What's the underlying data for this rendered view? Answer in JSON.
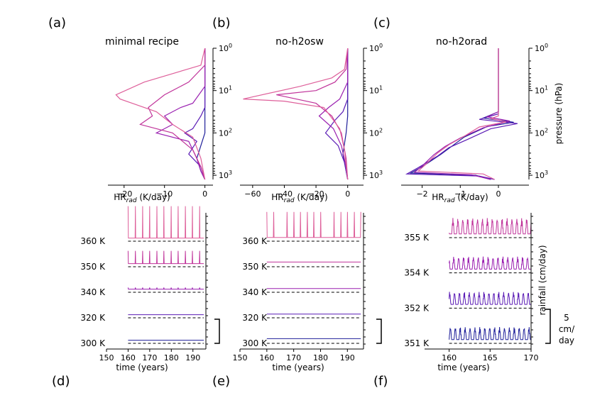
{
  "colors": {
    "c1": "#1f1f9a",
    "c2": "#5a1bb5",
    "c3": "#9a1fb0",
    "c4": "#c0339a",
    "c5": "#de5f9a",
    "baseline": "#000000",
    "axis": "#000000"
  },
  "chart_data": [
    {
      "type": "line",
      "panel": "(a)",
      "title": "minimal recipe",
      "xlabel_main": "HR",
      "xlabel_sub": "rad",
      "xlabel_unit": " (K/day)",
      "xlim": [
        -24,
        2
      ],
      "xticks": [
        -20,
        -10,
        0
      ],
      "xtick_labels": [
        "−20",
        "−10",
        "0"
      ],
      "ylim_log10": [
        0,
        3.1
      ],
      "yticks": [
        "0",
        "1",
        "2",
        "3"
      ],
      "ylabel": "",
      "series": [
        {
          "name": "300 K",
          "color": "c1",
          "points": [
            [
              0,
              0
            ],
            [
              0,
              1.5
            ],
            [
              0,
              2
            ],
            [
              -1,
              2.3
            ],
            [
              -2,
              2.6
            ],
            [
              -1,
              2.9
            ],
            [
              0,
              3.1
            ]
          ]
        },
        {
          "name": "320 K",
          "color": "c2",
          "points": [
            [
              0,
              0
            ],
            [
              0,
              1.4
            ],
            [
              -1,
              1.6
            ],
            [
              -3,
              1.9
            ],
            [
              -5,
              2.0
            ],
            [
              -2,
              2.2
            ],
            [
              -4,
              2.5
            ],
            [
              -1,
              2.8
            ],
            [
              0,
              3.1
            ]
          ]
        },
        {
          "name": "340 K",
          "color": "c3",
          "points": [
            [
              0,
              0
            ],
            [
              0,
              0.9
            ],
            [
              -3,
              1.3
            ],
            [
              -6,
              1.4
            ],
            [
              -10,
              1.6
            ],
            [
              -8,
              1.8
            ],
            [
              -12,
              2.0
            ],
            [
              -4,
              2.2
            ],
            [
              -2,
              2.6
            ],
            [
              -1,
              2.9
            ],
            [
              0,
              3.1
            ]
          ]
        },
        {
          "name": "350 K",
          "color": "c4",
          "points": [
            [
              0,
              0
            ],
            [
              0,
              0.4
            ],
            [
              -4,
              0.8
            ],
            [
              -10,
              1.1
            ],
            [
              -14,
              1.4
            ],
            [
              -13,
              1.6
            ],
            [
              -16,
              1.8
            ],
            [
              -8,
              2.0
            ],
            [
              -3,
              2.4
            ],
            [
              -1,
              2.8
            ],
            [
              0,
              3.1
            ]
          ]
        },
        {
          "name": "360 K",
          "color": "c5",
          "points": [
            [
              0,
              0
            ],
            [
              -1,
              0.4
            ],
            [
              -8,
              0.6
            ],
            [
              -15,
              0.8
            ],
            [
              -22,
              1.1
            ],
            [
              -21,
              1.2
            ],
            [
              -18,
              1.3
            ],
            [
              -12,
              1.5
            ],
            [
              -8,
              1.8
            ],
            [
              -3,
              2.1
            ],
            [
              -1,
              2.6
            ],
            [
              0,
              3.1
            ]
          ]
        }
      ]
    },
    {
      "type": "line",
      "panel": "(b)",
      "title": "no-h2osw",
      "xlabel_main": "HR",
      "xlabel_sub": "rad",
      "xlabel_unit": " (K/day)",
      "xlim": [
        -68,
        10
      ],
      "xticks": [
        -60,
        -40,
        -20,
        0
      ],
      "xtick_labels": [
        "−60",
        "−40",
        "−20",
        "0"
      ],
      "ylim_log10": [
        0,
        3.1
      ],
      "yticks": [
        "0",
        "1",
        "2",
        "3"
      ],
      "ylabel": "",
      "series": [
        {
          "name": "300 K",
          "color": "c1",
          "points": [
            [
              0,
              0
            ],
            [
              0,
              1.6
            ],
            [
              -1,
              2.0
            ],
            [
              -3,
              2.5
            ],
            [
              -1,
              2.9
            ],
            [
              0,
              3.1
            ]
          ]
        },
        {
          "name": "320 K",
          "color": "c2",
          "points": [
            [
              0,
              0
            ],
            [
              0,
              1.2
            ],
            [
              -3,
              1.5
            ],
            [
              -8,
              1.7
            ],
            [
              -14,
              2.0
            ],
            [
              -6,
              2.3
            ],
            [
              -2,
              2.7
            ],
            [
              0,
              3.1
            ]
          ]
        },
        {
          "name": "340 K",
          "color": "c3",
          "points": [
            [
              0,
              0
            ],
            [
              0,
              0.8
            ],
            [
              -5,
              1.2
            ],
            [
              -12,
              1.4
            ],
            [
              -18,
              1.6
            ],
            [
              -9,
              1.9
            ],
            [
              -4,
              2.3
            ],
            [
              -1,
              2.8
            ],
            [
              0,
              3.1
            ]
          ]
        },
        {
          "name": "350 K",
          "color": "c4",
          "points": [
            [
              0,
              0
            ],
            [
              -1,
              0.5
            ],
            [
              -8,
              0.8
            ],
            [
              -20,
              1.0
            ],
            [
              -45,
              1.1
            ],
            [
              -20,
              1.3
            ],
            [
              -10,
              1.6
            ],
            [
              -4,
              2.0
            ],
            [
              -1,
              2.6
            ],
            [
              0,
              3.1
            ]
          ]
        },
        {
          "name": "360 K",
          "color": "c5",
          "points": [
            [
              0,
              0
            ],
            [
              -2,
              0.5
            ],
            [
              -10,
              0.7
            ],
            [
              -30,
              0.9
            ],
            [
              -66,
              1.2
            ],
            [
              -40,
              1.25
            ],
            [
              -15,
              1.4
            ],
            [
              -5,
              1.9
            ],
            [
              -2,
              2.4
            ],
            [
              0,
              3.1
            ]
          ]
        }
      ]
    },
    {
      "type": "line",
      "panel": "(c)",
      "title": "no-h2orad",
      "xlabel_main": "HR",
      "xlabel_sub": "rad",
      "xlabel_unit": " (K/day)",
      "xlim": [
        -2.55,
        0.8
      ],
      "xticks": [
        -2,
        -1,
        0
      ],
      "xtick_labels": [
        "−2",
        "−1",
        "0"
      ],
      "ylim_log10": [
        0,
        3.1
      ],
      "yticks": [
        "0",
        "1",
        "2",
        "3"
      ],
      "ylabel": "pressure (hPa)",
      "series": [
        {
          "name": "351 K",
          "color": "c1",
          "points": [
            [
              0,
              0
            ],
            [
              0,
              1.5
            ],
            [
              -0.4,
              1.65
            ],
            [
              0.4,
              1.75
            ],
            [
              -0.3,
              1.85
            ],
            [
              -0.9,
              2.1
            ],
            [
              -1.2,
              2.3
            ],
            [
              -1.5,
              2.5
            ],
            [
              -2.0,
              2.8
            ],
            [
              -2.3,
              2.95
            ],
            [
              -0.6,
              3.0
            ],
            [
              -0.2,
              3.1
            ]
          ]
        },
        {
          "name": "352 K",
          "color": "c2",
          "points": [
            [
              0,
              0
            ],
            [
              0,
              1.55
            ],
            [
              -0.5,
              1.68
            ],
            [
              0.5,
              1.78
            ],
            [
              -0.2,
              1.9
            ],
            [
              -0.8,
              2.15
            ],
            [
              -1.3,
              2.35
            ],
            [
              -1.6,
              2.55
            ],
            [
              -2.1,
              2.82
            ],
            [
              -2.4,
              2.97
            ],
            [
              -0.5,
              3.02
            ],
            [
              -0.1,
              3.1
            ]
          ]
        },
        {
          "name": "354 K",
          "color": "c3",
          "points": [
            [
              0,
              0
            ],
            [
              0,
              1.5
            ],
            [
              -0.3,
              1.62
            ],
            [
              0.3,
              1.72
            ],
            [
              -0.4,
              1.88
            ],
            [
              -1.0,
              2.12
            ],
            [
              -1.4,
              2.32
            ],
            [
              -1.7,
              2.52
            ],
            [
              -2.0,
              2.78
            ],
            [
              -2.2,
              2.93
            ],
            [
              -0.7,
              2.99
            ],
            [
              -0.2,
              3.1
            ]
          ]
        },
        {
          "name": "355 K",
          "color": "c5",
          "points": [
            [
              0,
              0
            ],
            [
              0,
              1.6
            ],
            [
              -0.2,
              1.66
            ],
            [
              0.2,
              1.74
            ],
            [
              -0.5,
              1.86
            ],
            [
              -0.9,
              2.08
            ],
            [
              -1.3,
              2.28
            ],
            [
              -1.6,
              2.48
            ],
            [
              -1.9,
              2.74
            ],
            [
              -2.1,
              2.9
            ],
            [
              -0.4,
              2.97
            ],
            [
              -0.1,
              3.1
            ]
          ]
        }
      ]
    },
    {
      "type": "line",
      "panel": "(d)",
      "xlabel": "time (years)",
      "xlim": [
        150,
        196
      ],
      "xticks": [
        150,
        160,
        170,
        180,
        190
      ],
      "t_range": [
        160,
        195
      ],
      "ylabel": "",
      "rows": [
        {
          "label": "300 K",
          "color": "c1",
          "level": 0.3,
          "spike": 0,
          "period": 3.3
        },
        {
          "label": "320 K",
          "color": "c2",
          "level": 0.3,
          "spike": 0,
          "period": 3.3
        },
        {
          "label": "340 K",
          "color": "c3",
          "level": 0.3,
          "spike": 0.5,
          "period": 3.3
        },
        {
          "label": "350 K",
          "color": "c4",
          "level": 0.3,
          "spike": 4,
          "period": 3.3
        },
        {
          "label": "360 K",
          "color": "c5",
          "level": 0.3,
          "spike": 10,
          "period": 3.3
        }
      ],
      "scalebar": "5 cm/day"
    },
    {
      "type": "line",
      "panel": "(e)",
      "xlabel": "time (years)",
      "xlim": [
        150,
        196
      ],
      "xticks": [
        150,
        160,
        170,
        180,
        190
      ],
      "t_range": [
        160,
        195
      ],
      "ylabel": "",
      "rows": [
        {
          "label": "300 K",
          "color": "c1",
          "level": 0.8,
          "spike": 0,
          "period": 2.5
        },
        {
          "label": "320 K",
          "color": "c2",
          "level": 0.5,
          "spike": 0,
          "period": 2.5
        },
        {
          "label": "340 K",
          "color": "c3",
          "level": 0.5,
          "spike": 0,
          "period": 2.5
        },
        {
          "label": "350 K",
          "color": "c4",
          "level": 0.8,
          "spike": 0,
          "period": 2.5
        },
        {
          "label": "360 K",
          "color": "c5",
          "level": 0.5,
          "spike": 8,
          "period": 2.5
        }
      ],
      "scalebar": "5 cm/day"
    },
    {
      "type": "line",
      "panel": "(f)",
      "xlabel": "time (years)",
      "xlim": [
        157,
        170
      ],
      "xticks": [
        160,
        165,
        170
      ],
      "t_range": [
        160,
        170
      ],
      "ylabel": "rainfall (cm/day)",
      "rows": [
        {
          "label": "351 K",
          "color": "c1",
          "level": 0.5,
          "spike": 4,
          "period": 0.6
        },
        {
          "label": "352 K",
          "color": "c2",
          "level": 0.5,
          "spike": 4,
          "period": 0.6
        },
        {
          "label": "354 K",
          "color": "c3",
          "level": 0.5,
          "spike": 4,
          "period": 0.6
        },
        {
          "label": "355 K",
          "color": "c4",
          "level": 0.5,
          "spike": 5,
          "period": 0.6
        }
      ],
      "scalebar_line1": "5",
      "scalebar_line2": "cm/",
      "scalebar_line3": "day"
    }
  ]
}
